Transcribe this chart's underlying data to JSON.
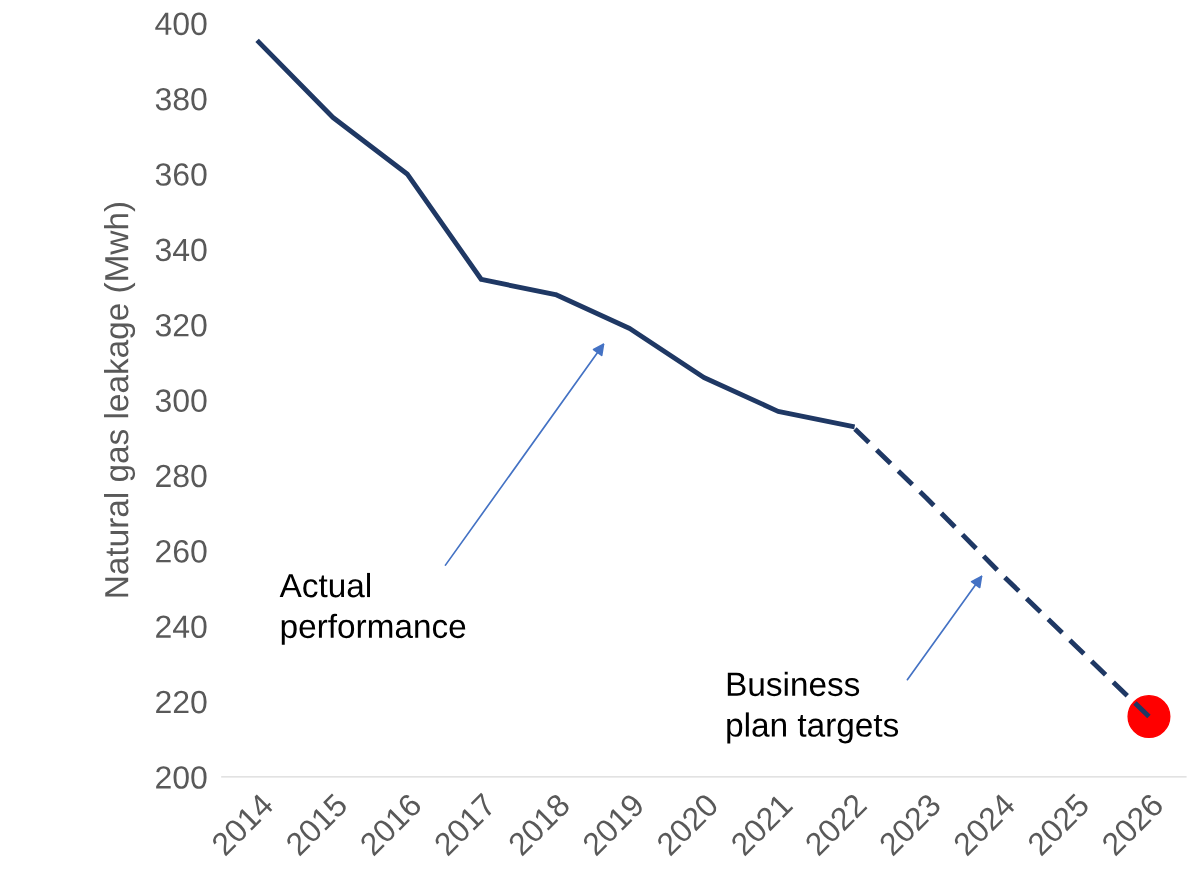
{
  "chart_data": {
    "type": "line",
    "ylabel": "Natural gas leakage (Mwh)",
    "categories": [
      "2014",
      "2015",
      "2016",
      "2017",
      "2018",
      "2019",
      "2020",
      "2021",
      "2022",
      "2023",
      "2024",
      "2025",
      "2026"
    ],
    "series": [
      {
        "color": "#1f3864",
        "line_style": "solid",
        "values": [
          395,
          375,
          360,
          332,
          328,
          319,
          306,
          297,
          293,
          null,
          null,
          null,
          null
        ]
      },
      {
        "color": "#1f3864",
        "line_style": "dashed",
        "values": [
          null,
          null,
          null,
          null,
          null,
          null,
          null,
          null,
          293,
          274,
          254,
          235,
          216
        ]
      },
      {
        "type": "scatter",
        "color": "#ff0000",
        "marker": "circle",
        "values": [
          null,
          null,
          null,
          null,
          null,
          null,
          null,
          null,
          null,
          null,
          null,
          null,
          216
        ]
      }
    ],
    "ylim": [
      200,
      400
    ],
    "yticks": [
      200,
      220,
      240,
      260,
      280,
      300,
      320,
      340,
      360,
      380,
      400
    ],
    "grid": false,
    "legend": false,
    "annotations": [
      "Actual\nperformance",
      "Business\nplan targets"
    ]
  }
}
